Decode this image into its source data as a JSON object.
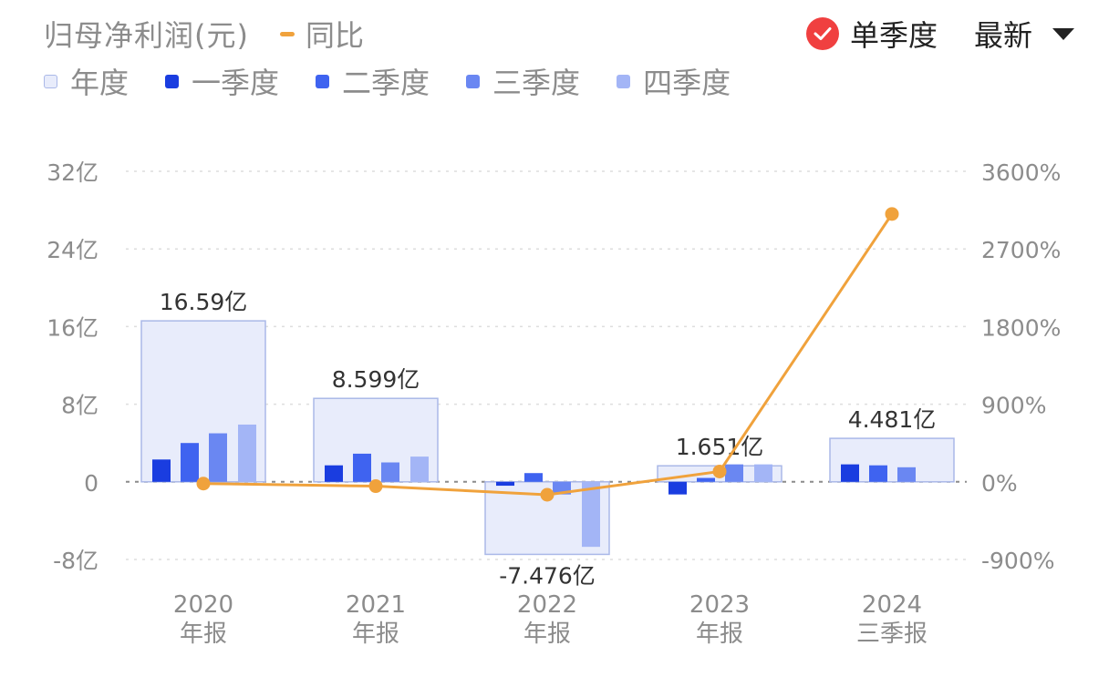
{
  "header": {
    "title": "归母净利润(元)",
    "yoy_legend": "同比",
    "toggle_label": "单季度",
    "toggle_checked": true,
    "select_value": "最新"
  },
  "legend": {
    "items": [
      {
        "label": "年度",
        "color": "#e8ecfb"
      },
      {
        "label": "一季度",
        "color": "#1a3de0"
      },
      {
        "label": "二季度",
        "color": "#3f63f0"
      },
      {
        "label": "三季度",
        "color": "#6a87f2"
      },
      {
        "label": "四季度",
        "color": "#a3b5f6"
      }
    ]
  },
  "colors": {
    "yoy_line": "#f0a23c",
    "toggle_red": "#f04040",
    "annual_fill": "#e8ecfb",
    "annual_border": "#aab8e8"
  },
  "chart_data": {
    "type": "bar",
    "categories": [
      {
        "line1": "2020",
        "line2": "年报"
      },
      {
        "line1": "2021",
        "line2": "年报"
      },
      {
        "line1": "2022",
        "line2": "年报"
      },
      {
        "line1": "2023",
        "line2": "年报"
      },
      {
        "line1": "2024",
        "line2": "三季报"
      }
    ],
    "annual": {
      "values": [
        16.59,
        8.599,
        -7.476,
        1.651,
        4.481
      ],
      "labels": [
        "16.59亿",
        "8.599亿",
        "-7.476亿",
        "1.651亿",
        "4.481亿"
      ]
    },
    "quarters": {
      "names": [
        "一季度",
        "二季度",
        "三季度",
        "四季度"
      ],
      "values": [
        [
          2.3,
          4.0,
          5.0,
          5.9
        ],
        [
          1.7,
          2.9,
          2.0,
          2.6
        ],
        [
          -0.4,
          0.9,
          -1.3,
          -6.7
        ],
        [
          -1.3,
          0.4,
          1.8,
          1.8
        ],
        [
          1.8,
          1.7,
          1.5,
          null
        ]
      ]
    },
    "yoy": {
      "name": "同比",
      "values": [
        -20,
        -50,
        -150,
        120,
        3105
      ]
    },
    "y_left": {
      "min": -8,
      "max": 32,
      "ticks": [
        32,
        24,
        16,
        8,
        0,
        -8
      ],
      "tick_labels": [
        "32亿",
        "24亿",
        "16亿",
        "8亿",
        "0",
        "-8亿"
      ]
    },
    "y_right": {
      "min": -900,
      "max": 3600,
      "tick_labels": [
        "3600%",
        "2700%",
        "1800%",
        "900%",
        "0%",
        "-900%"
      ]
    },
    "grid": true,
    "legend_position": "top-left"
  }
}
